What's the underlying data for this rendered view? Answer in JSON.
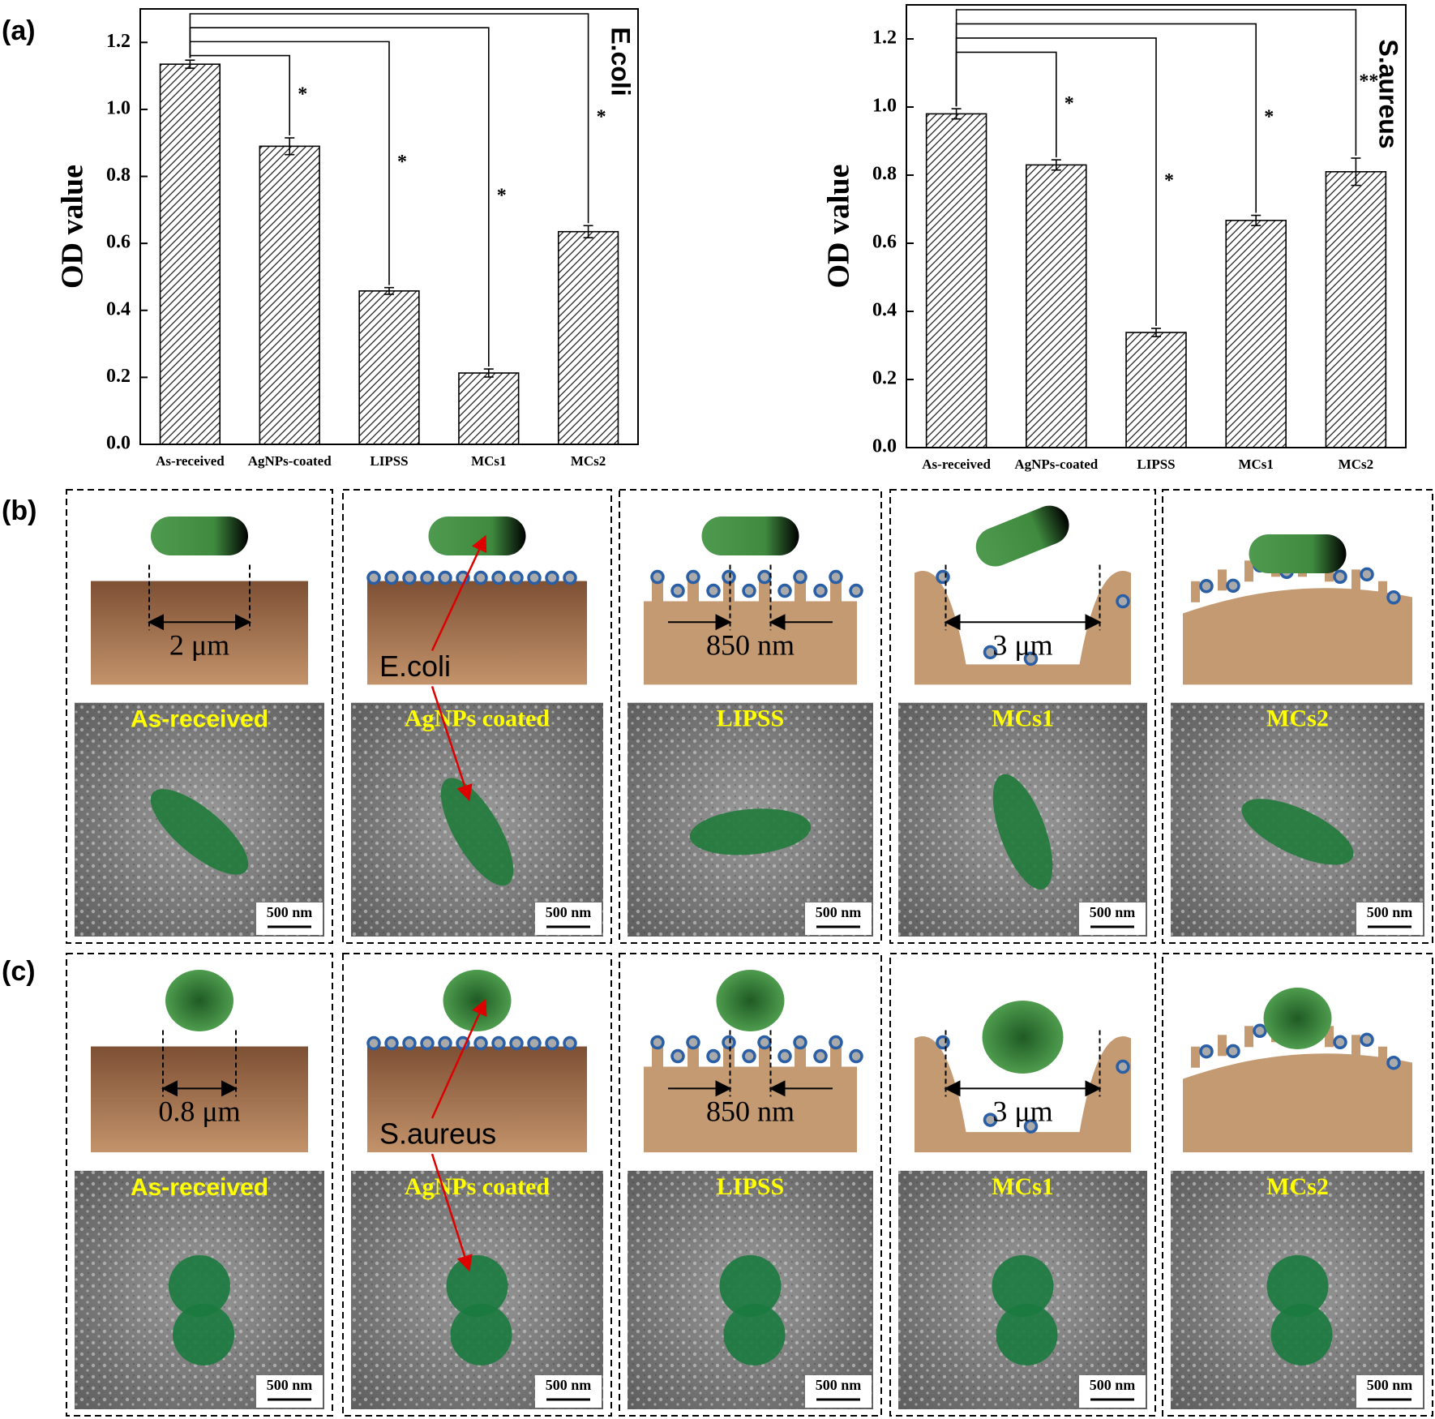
{
  "panel_labels": [
    "(a)",
    "(b)",
    "(c)"
  ],
  "chart_data": [
    {
      "type": "bar",
      "title": "E.coli",
      "y_label": "OD value",
      "categories": [
        "As-received",
        "AgNPs-coated",
        "LIPSS",
        "MCs1",
        "MCs2"
      ],
      "values": [
        1.135,
        0.89,
        0.458,
        0.213,
        0.635
      ],
      "errors": [
        0.012,
        0.025,
        0.01,
        0.012,
        0.018
      ],
      "significance": [
        null,
        "*",
        "*",
        "*",
        "*"
      ],
      "ylim": [
        0,
        1.3
      ],
      "yticks": [
        {
          "value": 0,
          "label": "0.0"
        },
        0.2,
        0.4,
        0.6,
        0.8,
        {
          "value": 1,
          "label": "1.0"
        },
        1.2
      ]
    },
    {
      "type": "bar",
      "title": "S.aureus",
      "y_label": "OD value",
      "categories": [
        "As-received",
        "AgNPs-coated",
        "LIPSS",
        "MCs1",
        "MCs2"
      ],
      "values": [
        0.98,
        0.83,
        0.338,
        0.667,
        0.81
      ],
      "errors": [
        0.015,
        0.015,
        0.012,
        0.015,
        0.04
      ],
      "significance": [
        null,
        "*",
        "*",
        "*",
        "**"
      ],
      "ylim": [
        0,
        1.3
      ],
      "yticks": [
        {
          "value": 0,
          "label": "0.0"
        },
        0.2,
        0.4,
        0.6,
        0.8,
        {
          "value": 1,
          "label": "1.0"
        },
        1.2
      ]
    }
  ],
  "rows": [
    {
      "panels": [
        {
          "dimension": "2 μm",
          "sem_label": "As-received",
          "scale_bar": "500 nm"
        },
        {
          "annotation": "E.coli",
          "sem_label": "AgNPs coated",
          "scale_bar": "500 nm"
        },
        {
          "dimension": "850 nm",
          "sem_label": "LIPSS",
          "scale_bar": "500 nm"
        },
        {
          "dimension": "3 μm",
          "sem_label": "MCs1",
          "scale_bar": "500 nm"
        },
        {
          "sem_label": "MCs2",
          "scale_bar": "500 nm"
        }
      ]
    },
    {
      "panels": [
        {
          "dimension": "0.8 μm",
          "sem_label": "As-received",
          "scale_bar": "500 nm"
        },
        {
          "annotation": "S.aureus",
          "sem_label": "AgNPs coated",
          "scale_bar": "500 nm"
        },
        {
          "dimension": "850 nm",
          "sem_label": "LIPSS",
          "scale_bar": "500 nm"
        },
        {
          "dimension": "3 μm",
          "sem_label": "MCs1",
          "scale_bar": "500 nm"
        },
        {
          "sem_label": "MCs2",
          "scale_bar": "500 nm"
        }
      ]
    }
  ]
}
